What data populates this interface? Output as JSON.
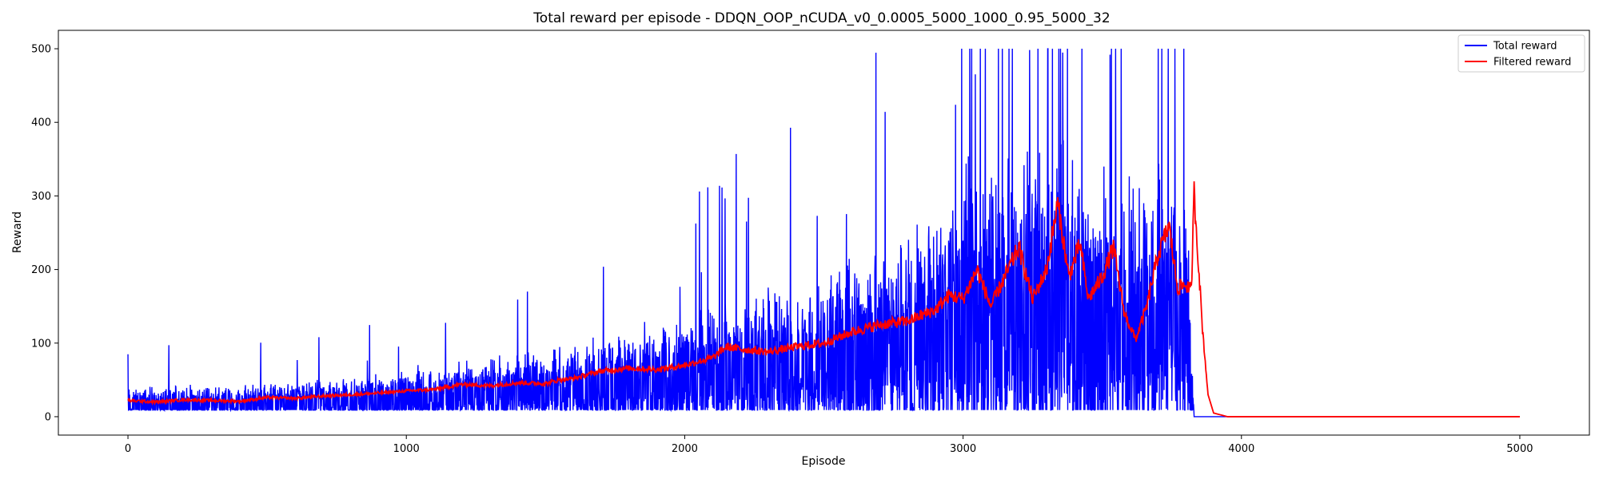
{
  "chart_data": {
    "type": "line",
    "title": "Total reward per episode - DDQN_OOP_nCUDA_v0_0.0005_5000_1000_0.95_5000_32",
    "xlabel": "Episode",
    "ylabel": "Reward",
    "xlim": [
      -250,
      5250
    ],
    "ylim": [
      -25,
      525
    ],
    "xticks": [
      0,
      1000,
      2000,
      3000,
      4000,
      5000
    ],
    "yticks": [
      0,
      100,
      200,
      300,
      400,
      500
    ],
    "grid": false,
    "legend_position": "top-right",
    "total_episodes": 5000,
    "series": [
      {
        "name": "Total reward",
        "color": "#0000ff",
        "description_points": [
          [
            0,
            22
          ],
          [
            100,
            21
          ],
          [
            200,
            23
          ],
          [
            300,
            21
          ],
          [
            400,
            22
          ],
          [
            500,
            24
          ],
          [
            600,
            24
          ],
          [
            700,
            26
          ],
          [
            800,
            28
          ],
          [
            900,
            30
          ],
          [
            1000,
            34
          ],
          [
            1100,
            36
          ],
          [
            1200,
            40
          ],
          [
            1300,
            42
          ],
          [
            1400,
            46
          ],
          [
            1500,
            48
          ],
          [
            1600,
            52
          ],
          [
            1700,
            58
          ],
          [
            1800,
            62
          ],
          [
            1900,
            64
          ],
          [
            2000,
            70
          ],
          [
            2100,
            78
          ],
          [
            2200,
            84
          ],
          [
            2300,
            90
          ],
          [
            2400,
            94
          ],
          [
            2500,
            100
          ],
          [
            2600,
            112
          ],
          [
            2700,
            120
          ],
          [
            2800,
            130
          ],
          [
            2900,
            150
          ],
          [
            3000,
            175
          ],
          [
            3100,
            175
          ],
          [
            3200,
            185
          ],
          [
            3300,
            200
          ],
          [
            3400,
            190
          ],
          [
            3500,
            170
          ],
          [
            3600,
            160
          ],
          [
            3700,
            180
          ],
          [
            3800,
            180
          ],
          [
            3830,
            0
          ],
          [
            5000,
            0
          ]
        ]
      },
      {
        "name": "Filtered reward",
        "color": "#ff0000",
        "description_points": [
          [
            0,
            22
          ],
          [
            100,
            20
          ],
          [
            200,
            23
          ],
          [
            300,
            22
          ],
          [
            400,
            21
          ],
          [
            500,
            26
          ],
          [
            600,
            25
          ],
          [
            700,
            28
          ],
          [
            800,
            30
          ],
          [
            900,
            32
          ],
          [
            1000,
            35
          ],
          [
            1100,
            37
          ],
          [
            1200,
            44
          ],
          [
            1300,
            42
          ],
          [
            1400,
            46
          ],
          [
            1500,
            45
          ],
          [
            1550,
            50
          ],
          [
            1600,
            52
          ],
          [
            1700,
            62
          ],
          [
            1800,
            66
          ],
          [
            1900,
            64
          ],
          [
            2000,
            70
          ],
          [
            2100,
            80
          ],
          [
            2150,
            95
          ],
          [
            2200,
            92
          ],
          [
            2300,
            88
          ],
          [
            2400,
            95
          ],
          [
            2500,
            100
          ],
          [
            2600,
            115
          ],
          [
            2700,
            125
          ],
          [
            2800,
            130
          ],
          [
            2900,
            145
          ],
          [
            2950,
            165
          ],
          [
            3000,
            160
          ],
          [
            3050,
            200
          ],
          [
            3100,
            150
          ],
          [
            3150,
            190
          ],
          [
            3200,
            230
          ],
          [
            3250,
            160
          ],
          [
            3300,
            200
          ],
          [
            3340,
            290
          ],
          [
            3380,
            190
          ],
          [
            3420,
            235
          ],
          [
            3450,
            160
          ],
          [
            3500,
            190
          ],
          [
            3540,
            230
          ],
          [
            3580,
            140
          ],
          [
            3620,
            105
          ],
          [
            3660,
            150
          ],
          [
            3700,
            220
          ],
          [
            3740,
            260
          ],
          [
            3770,
            175
          ],
          [
            3800,
            180
          ],
          [
            3820,
            170
          ],
          [
            3830,
            305
          ],
          [
            3860,
            120
          ],
          [
            3880,
            30
          ],
          [
            3900,
            5
          ],
          [
            3950,
            0
          ],
          [
            5000,
            0
          ]
        ]
      }
    ]
  }
}
